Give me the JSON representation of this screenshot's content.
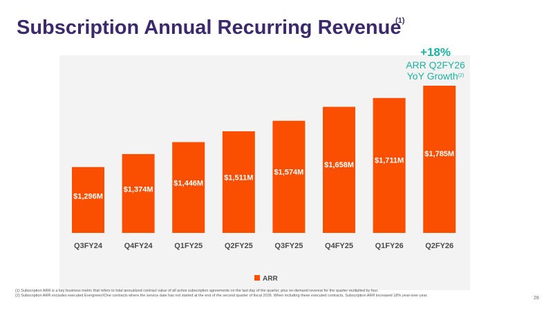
{
  "slide": {
    "title": "Subscription Annual Recurring Revenue",
    "title_footnote": "(1)",
    "page_number": "28"
  },
  "callout": {
    "percent": "+18%",
    "line1": "ARR Q2FY26",
    "line2": "YoY Growth",
    "footnote": "(2)",
    "color": "#1ab2a0"
  },
  "footnotes": [
    "(1) Subscription ARR is a key business metric that refers to total annualized contract value of all active subscription agreements on the last day of the quarter, plus on-demand revenue for the quarter multiplied by four.",
    "(2) Subscription ARR excludes executed Evergreen//One contracts where the service date has not started at the end of the second quarter of fiscal 2026. When including these executed contracts, Subscription ARR increased 18% year-over-year."
  ],
  "chart_data": {
    "type": "bar",
    "categories": [
      "Q3FY24",
      "Q4FY24",
      "Q1FY25",
      "Q2FY25",
      "Q3FY25",
      "Q4FY25",
      "Q1FY26",
      "Q2FY26"
    ],
    "series": [
      {
        "name": "ARR",
        "values": [
          1296,
          1374,
          1446,
          1511,
          1574,
          1658,
          1711,
          1785
        ],
        "labels": [
          "$1,296M",
          "$1,374M",
          "$1,446M",
          "$1,511M",
          "$1,574M",
          "$1,658M",
          "$1,711M",
          "$1,785M"
        ],
        "color": "#fa4f00"
      }
    ],
    "legend": "bottom",
    "grid": false
  }
}
